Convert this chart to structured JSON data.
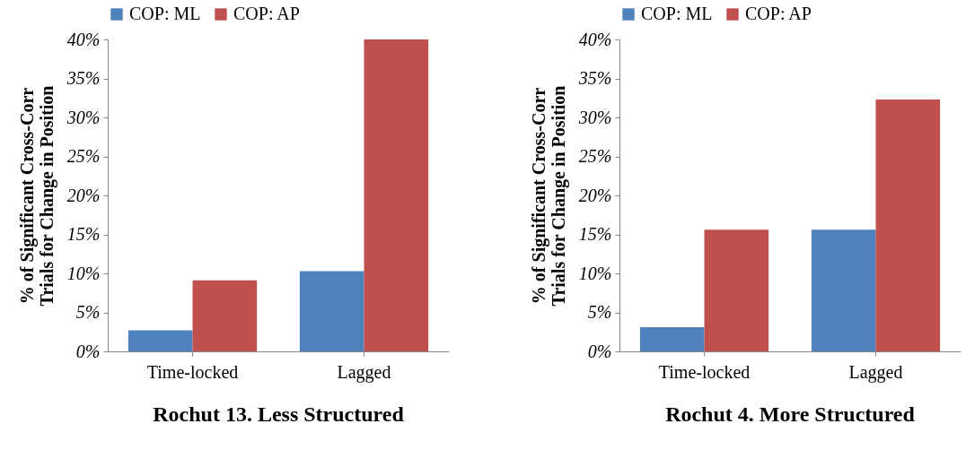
{
  "chart_data": [
    {
      "type": "bar",
      "title": "Rochut 13. Less Structured",
      "ylabel": "% of Significant  Cross-Corr\nTrials for Change in Position",
      "categories": [
        "Time-locked",
        "Lagged"
      ],
      "series": [
        {
          "name": "COP: ML",
          "color": "#4f81bd",
          "values": [
            2.7,
            10.3
          ]
        },
        {
          "name": "COP: AP",
          "color": "#c0504d",
          "values": [
            9.1,
            40
          ]
        }
      ],
      "ylim": [
        0,
        40
      ],
      "yticks": [
        {
          "value": 0,
          "label": "0%"
        },
        {
          "value": 5,
          "label": "5%"
        },
        {
          "value": 10,
          "label": "10%"
        },
        {
          "value": 15,
          "label": "15%"
        },
        {
          "value": 20,
          "label": "20%"
        },
        {
          "value": 25,
          "label": "25%"
        },
        {
          "value": 30,
          "label": "30%"
        },
        {
          "value": 35,
          "label": "35%"
        },
        {
          "value": 40,
          "label": "40%"
        }
      ],
      "legend": "top",
      "grid": false
    },
    {
      "type": "bar",
      "title": "Rochut 4. More Structured",
      "ylabel": "% of Significant  Cross-Corr\nTrials for Change in Position",
      "categories": [
        "Time-locked",
        "Lagged"
      ],
      "series": [
        {
          "name": "COP: ML",
          "color": "#4f81bd",
          "values": [
            3.1,
            15.6
          ]
        },
        {
          "name": "COP: AP",
          "color": "#c0504d",
          "values": [
            15.6,
            32.3
          ]
        }
      ],
      "ylim": [
        0,
        40
      ],
      "yticks": [
        {
          "value": 0,
          "label": "0%"
        },
        {
          "value": 5,
          "label": "5%"
        },
        {
          "value": 10,
          "label": "10%"
        },
        {
          "value": 15,
          "label": "15%"
        },
        {
          "value": 20,
          "label": "20%"
        },
        {
          "value": 25,
          "label": "25%"
        },
        {
          "value": 30,
          "label": "30%"
        },
        {
          "value": 35,
          "label": "35%"
        },
        {
          "value": 40,
          "label": "40%"
        }
      ],
      "legend": "top",
      "grid": false
    }
  ]
}
